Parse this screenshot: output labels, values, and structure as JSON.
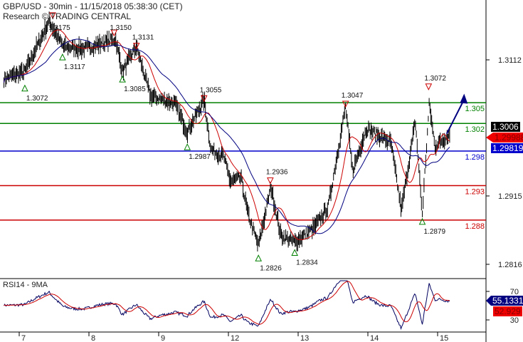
{
  "header": {
    "title": "GBP/USD - 30min - 11/15/2018 05:38:30 (CET)",
    "source": "Research © TRADING CENTRAL"
  },
  "colors": {
    "bars": "#000000",
    "ma_fast": "#cc0000",
    "ma_slow": "#000080",
    "resistance": "#008000",
    "pivot": "#0000cc",
    "support": "#cc0000",
    "arrow": "#000080"
  },
  "chart_data": {
    "type": "line",
    "symbol": "GBP/USD",
    "interval": "30min",
    "x_ticks": [
      "7",
      "8",
      "9",
      "12",
      "13",
      "14",
      "15"
    ],
    "y_ticks": [
      "1.3112",
      "1.2915",
      "1.2816"
    ],
    "ylim": [
      1.277,
      1.32
    ],
    "price_path": [
      [
        6.75,
        1.3085
      ],
      [
        7.05,
        1.3095
      ],
      [
        7.4,
        1.3168
      ],
      [
        7.6,
        1.3131
      ],
      [
        7.9,
        1.3128
      ],
      [
        8.35,
        1.3142
      ],
      [
        8.45,
        1.3095
      ],
      [
        8.65,
        1.3131
      ],
      [
        8.85,
        1.306
      ],
      [
        9.2,
        1.3049
      ],
      [
        9.38,
        1.3008
      ],
      [
        9.62,
        1.3054
      ],
      [
        9.72,
        1.2982
      ],
      [
        9.9,
        1.2972
      ],
      [
        12.0,
        1.2936
      ],
      [
        12.15,
        1.2941
      ],
      [
        12.25,
        1.2889
      ],
      [
        12.4,
        1.2843
      ],
      [
        12.58,
        1.2928
      ],
      [
        12.72,
        1.2858
      ],
      [
        12.92,
        1.2848
      ],
      [
        13.2,
        1.2869
      ],
      [
        13.4,
        1.2899
      ],
      [
        13.65,
        1.3044
      ],
      [
        13.75,
        1.2951
      ],
      [
        13.95,
        1.3013
      ],
      [
        14.3,
        1.2992
      ],
      [
        14.45,
        1.2894
      ],
      [
        14.65,
        1.3023
      ],
      [
        14.75,
        1.2889
      ],
      [
        14.85,
        1.3049
      ],
      [
        14.93,
        1.2987
      ],
      [
        15.15,
        1.3005
      ]
    ],
    "levels": [
      {
        "value": 1.305,
        "label": "1.305",
        "type": "resistance"
      },
      {
        "value": 1.302,
        "label": "1.302",
        "type": "resistance"
      },
      {
        "value": 1.298,
        "label": "1.298",
        "type": "pivot"
      },
      {
        "value": 1.293,
        "label": "1.293",
        "type": "support"
      },
      {
        "value": 1.288,
        "label": "1.288",
        "type": "support"
      }
    ],
    "highs": [
      {
        "x": 7.45,
        "price": 1.3175,
        "label": "1.3175"
      },
      {
        "x": 8.33,
        "price": 1.315,
        "label": "1.3150"
      },
      {
        "x": 8.65,
        "price": 1.3131,
        "label": "1.3131"
      },
      {
        "x": 9.62,
        "price": 1.3055,
        "label": "1.3055"
      },
      {
        "x": 12.57,
        "price": 1.2936,
        "label": "1.2936"
      },
      {
        "x": 13.65,
        "price": 1.3047,
        "label": "1.3047"
      },
      {
        "x": 14.84,
        "price": 1.3072,
        "label": "1.3072"
      }
    ],
    "lows": [
      {
        "x": 7.05,
        "price": 1.3072,
        "label": "1.3072"
      },
      {
        "x": 7.59,
        "price": 1.3117,
        "label": "1.3117"
      },
      {
        "x": 8.45,
        "price": 1.3085,
        "label": "1.3085"
      },
      {
        "x": 9.38,
        "price": 1.2987,
        "label": "1.2987"
      },
      {
        "x": 12.4,
        "price": 1.2826,
        "label": "1.2826"
      },
      {
        "x": 12.92,
        "price": 1.2834,
        "label": "1.2834"
      },
      {
        "x": 14.75,
        "price": 1.2879,
        "label": "1.2879"
      }
    ],
    "forecast_arrow": {
      "from": [
        15.1,
        1.3005
      ],
      "to": [
        15.35,
        1.3063
      ]
    },
    "last_price": "1.3006",
    "ma_fast_value": "1.29988",
    "ma_slow_value": "1.29819",
    "rsi": {
      "label": "RSI14 - 9MA",
      "ticks": [
        "70",
        "30"
      ],
      "value": "55.1331",
      "ma_value": "52.929"
    }
  }
}
